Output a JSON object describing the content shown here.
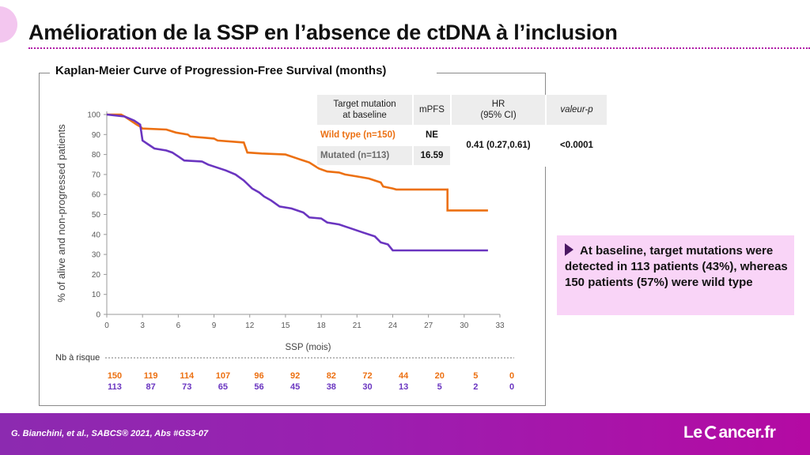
{
  "slide": {
    "title": "Amélioration de la SSP en l’absence de ctDNA à l’inclusion",
    "chart_heading": "Kaplan-Meier Curve of Progression-Free Survival (months)",
    "risk_label": "Nb à risque",
    "callout": "At baseline, target mutations were detected in 113 patients (43%), whereas 150 patients (57%) were wild type",
    "citation": "G. Bianchini, et al., SABCS® 2021, Abs #GS3-07",
    "logo": {
      "left": "Le",
      "right": "ancer.fr"
    }
  },
  "table": {
    "headers": [
      "Target mutation\nat baseline",
      "mPFS",
      "HR\n(95% CI)",
      "valeur-p"
    ],
    "rows": [
      {
        "group": "Wild type (n=150)",
        "mpfs": "NE"
      },
      {
        "group": "Mutated (n=113)",
        "mpfs": "16.59"
      }
    ],
    "hr": "0.41 (0.27,0.61)",
    "p": "<0.0001"
  },
  "colors": {
    "wild_type": "#ec7012",
    "mutated": "#6a35c0",
    "accent": "#9b1fb0",
    "callout_bg": "#f9d4f7"
  },
  "chart_data": {
    "type": "line",
    "ylabel": "% of alive and non-progressed patients",
    "xlabel": "SSP (mois)",
    "xlim": [
      0,
      33
    ],
    "ylim": [
      0,
      100
    ],
    "x_ticks": [
      0,
      3,
      6,
      9,
      12,
      15,
      18,
      21,
      24,
      27,
      30,
      33
    ],
    "y_ticks": [
      0,
      10,
      20,
      30,
      40,
      50,
      60,
      70,
      80,
      90,
      100
    ],
    "series": [
      {
        "name": "Wild type (n=150)",
        "color": "#ec7012",
        "points": [
          [
            0,
            100
          ],
          [
            1.2,
            100
          ],
          [
            1.5,
            99
          ],
          [
            2.0,
            97
          ],
          [
            2.5,
            95
          ],
          [
            2.8,
            94
          ],
          [
            3.0,
            93
          ],
          [
            5.0,
            92.5
          ],
          [
            5.8,
            91
          ],
          [
            6.8,
            90
          ],
          [
            7.0,
            89
          ],
          [
            9.0,
            88
          ],
          [
            9.3,
            87
          ],
          [
            11.5,
            86
          ],
          [
            11.8,
            81
          ],
          [
            13.0,
            80.5
          ],
          [
            15.0,
            80
          ],
          [
            16.0,
            78
          ],
          [
            17.0,
            76
          ],
          [
            17.8,
            73
          ],
          [
            18.5,
            71.5
          ],
          [
            19.5,
            71
          ],
          [
            20.0,
            70
          ],
          [
            21.0,
            69
          ],
          [
            22.0,
            68
          ],
          [
            23.0,
            66
          ],
          [
            23.2,
            64
          ],
          [
            24.0,
            63
          ],
          [
            24.3,
            62.5
          ],
          [
            28.6,
            62.5
          ],
          [
            28.6,
            52
          ],
          [
            32.0,
            52
          ]
        ],
        "at_risk": [
          150,
          119,
          114,
          107,
          96,
          92,
          82,
          72,
          44,
          20,
          5,
          0
        ]
      },
      {
        "name": "Mutated (n=113)",
        "color": "#6a35c0",
        "points": [
          [
            0,
            100
          ],
          [
            1.5,
            99
          ],
          [
            2.3,
            97
          ],
          [
            2.8,
            95
          ],
          [
            3.0,
            87
          ],
          [
            3.5,
            85
          ],
          [
            4.0,
            83
          ],
          [
            5.0,
            82
          ],
          [
            5.5,
            81
          ],
          [
            6.0,
            79
          ],
          [
            6.5,
            77
          ],
          [
            8.0,
            76.5
          ],
          [
            8.5,
            75
          ],
          [
            9.0,
            74
          ],
          [
            10.0,
            72
          ],
          [
            10.8,
            70
          ],
          [
            11.5,
            67
          ],
          [
            12.2,
            63
          ],
          [
            12.8,
            61
          ],
          [
            13.2,
            59
          ],
          [
            13.8,
            57
          ],
          [
            14.5,
            54
          ],
          [
            15.5,
            53
          ],
          [
            16.5,
            51
          ],
          [
            17.0,
            48.5
          ],
          [
            18.0,
            48
          ],
          [
            18.5,
            46
          ],
          [
            19.5,
            45
          ],
          [
            20.0,
            44
          ],
          [
            20.5,
            43
          ],
          [
            21.5,
            41
          ],
          [
            22.5,
            39
          ],
          [
            23.0,
            36
          ],
          [
            23.6,
            35
          ],
          [
            24.0,
            32
          ],
          [
            32.0,
            32
          ]
        ],
        "at_risk": [
          113,
          87,
          73,
          65,
          56,
          45,
          38,
          30,
          13,
          5,
          2,
          0
        ]
      }
    ],
    "table": {
      "columns": [
        "Target mutation at baseline",
        "mPFS",
        "HR (95% CI)",
        "valeur-p"
      ],
      "rows": [
        [
          "Wild type (n=150)",
          "NE",
          "0.41 (0.27,0.61)",
          "<0.0001"
        ],
        [
          "Mutated (n=113)",
          "16.59",
          "0.41 (0.27,0.61)",
          "<0.0001"
        ]
      ]
    },
    "grid": false
  }
}
